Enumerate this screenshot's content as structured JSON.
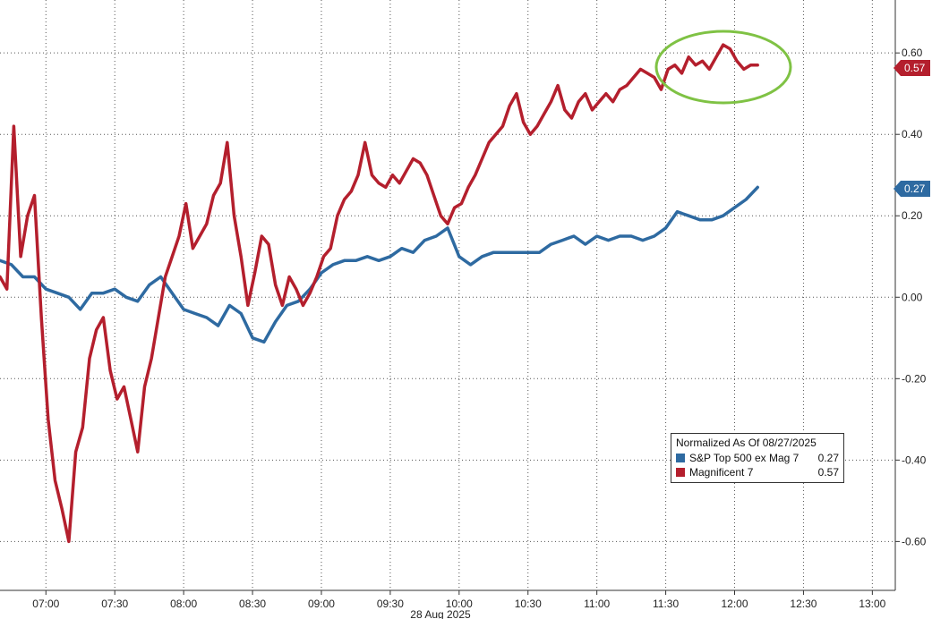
{
  "chart_data": {
    "type": "line",
    "xlabel": "28 Aug 2025",
    "x_ticks": [
      "07:00",
      "07:30",
      "08:00",
      "08:30",
      "09:00",
      "09:30",
      "10:00",
      "10:30",
      "11:00",
      "11:30",
      "12:00",
      "12:30",
      "13:00"
    ],
    "x_range": [
      "06:40",
      "13:10"
    ],
    "y_ticks": [
      "0.60",
      "0.40",
      "0.20",
      "0.00",
      "-0.20",
      "-0.40",
      "-0.60"
    ],
    "ylim": [
      -0.72,
      0.73
    ],
    "grid": true,
    "legend_position": "bottom-right",
    "legend_title": "Normalized As Of 08/27/2025",
    "series": [
      {
        "name": "S&P Top 500 ex Mag 7",
        "color": "#2e6aa1",
        "last_value": "0.27",
        "x": [
          "06:40",
          "06:45",
          "06:50",
          "06:55",
          "07:00",
          "07:05",
          "07:10",
          "07:15",
          "07:20",
          "07:25",
          "07:30",
          "07:35",
          "07:40",
          "07:45",
          "07:50",
          "07:55",
          "08:00",
          "08:05",
          "08:10",
          "08:15",
          "08:20",
          "08:25",
          "08:30",
          "08:35",
          "08:40",
          "08:45",
          "08:50",
          "08:55",
          "09:00",
          "09:05",
          "09:10",
          "09:15",
          "09:20",
          "09:25",
          "09:30",
          "09:35",
          "09:40",
          "09:45",
          "09:50",
          "09:55",
          "10:00",
          "10:05",
          "10:10",
          "10:15",
          "10:20",
          "10:25",
          "10:30",
          "10:35",
          "10:40",
          "10:45",
          "10:50",
          "10:55",
          "11:00",
          "11:05",
          "11:10",
          "11:15",
          "11:20",
          "11:25",
          "11:30",
          "11:35",
          "11:40",
          "11:45",
          "11:50",
          "11:55",
          "12:00",
          "12:05",
          "12:10"
        ],
        "values": [
          0.09,
          0.08,
          0.05,
          0.05,
          0.02,
          0.01,
          0.0,
          -0.03,
          0.01,
          0.01,
          0.02,
          0.0,
          -0.01,
          0.03,
          0.05,
          0.01,
          -0.03,
          -0.04,
          -0.05,
          -0.07,
          -0.02,
          -0.04,
          -0.1,
          -0.11,
          -0.06,
          -0.02,
          -0.01,
          0.02,
          0.06,
          0.08,
          0.09,
          0.09,
          0.1,
          0.09,
          0.1,
          0.12,
          0.11,
          0.14,
          0.15,
          0.17,
          0.1,
          0.08,
          0.1,
          0.11,
          0.11,
          0.11,
          0.11,
          0.11,
          0.13,
          0.14,
          0.15,
          0.13,
          0.15,
          0.14,
          0.15,
          0.15,
          0.14,
          0.15,
          0.17,
          0.21,
          0.2,
          0.19,
          0.19,
          0.2,
          0.22,
          0.24,
          0.27
        ]
      },
      {
        "name": "Magnificent 7",
        "color": "#b41f2d",
        "last_value": "0.57",
        "x": [
          "06:40",
          "06:43",
          "06:46",
          "06:49",
          "06:52",
          "06:55",
          "06:58",
          "07:01",
          "07:04",
          "07:07",
          "07:10",
          "07:13",
          "07:16",
          "07:19",
          "07:22",
          "07:25",
          "07:28",
          "07:31",
          "07:34",
          "07:37",
          "07:40",
          "07:43",
          "07:46",
          "07:49",
          "07:52",
          "07:55",
          "07:58",
          "08:01",
          "08:04",
          "08:07",
          "08:10",
          "08:13",
          "08:16",
          "08:19",
          "08:22",
          "08:25",
          "08:28",
          "08:31",
          "08:34",
          "08:37",
          "08:40",
          "08:43",
          "08:46",
          "08:49",
          "08:52",
          "08:55",
          "08:58",
          "09:01",
          "09:04",
          "09:07",
          "09:10",
          "09:13",
          "09:16",
          "09:19",
          "09:22",
          "09:25",
          "09:28",
          "09:31",
          "09:34",
          "09:37",
          "09:40",
          "09:43",
          "09:46",
          "09:49",
          "09:52",
          "09:55",
          "09:58",
          "10:01",
          "10:04",
          "10:07",
          "10:10",
          "10:13",
          "10:16",
          "10:19",
          "10:22",
          "10:25",
          "10:28",
          "10:31",
          "10:34",
          "10:37",
          "10:40",
          "10:43",
          "10:46",
          "10:49",
          "10:52",
          "10:55",
          "10:58",
          "11:01",
          "11:04",
          "11:07",
          "11:10",
          "11:13",
          "11:16",
          "11:19",
          "11:22",
          "11:25",
          "11:28",
          "11:31",
          "11:34",
          "11:37",
          "11:40",
          "11:43",
          "11:46",
          "11:49",
          "11:52",
          "11:55",
          "11:58",
          "12:01",
          "12:04",
          "12:07",
          "12:10"
        ],
        "values": [
          0.05,
          0.02,
          0.42,
          0.1,
          0.2,
          0.25,
          -0.05,
          -0.3,
          -0.45,
          -0.52,
          -0.6,
          -0.38,
          -0.32,
          -0.15,
          -0.08,
          -0.05,
          -0.18,
          -0.25,
          -0.22,
          -0.3,
          -0.38,
          -0.22,
          -0.15,
          -0.05,
          0.05,
          0.1,
          0.15,
          0.23,
          0.12,
          0.15,
          0.18,
          0.25,
          0.28,
          0.38,
          0.2,
          0.1,
          -0.02,
          0.06,
          0.15,
          0.13,
          0.03,
          -0.02,
          0.05,
          0.02,
          -0.02,
          0.01,
          0.05,
          0.1,
          0.12,
          0.2,
          0.24,
          0.26,
          0.3,
          0.38,
          0.3,
          0.28,
          0.27,
          0.3,
          0.28,
          0.31,
          0.34,
          0.33,
          0.3,
          0.25,
          0.2,
          0.18,
          0.22,
          0.23,
          0.27,
          0.3,
          0.34,
          0.38,
          0.4,
          0.42,
          0.47,
          0.5,
          0.43,
          0.4,
          0.42,
          0.45,
          0.48,
          0.52,
          0.46,
          0.44,
          0.48,
          0.5,
          0.46,
          0.48,
          0.5,
          0.48,
          0.51,
          0.52,
          0.54,
          0.56,
          0.55,
          0.54,
          0.51,
          0.56,
          0.57,
          0.55,
          0.59,
          0.57,
          0.58,
          0.56,
          0.59,
          0.62,
          0.61,
          0.58,
          0.56,
          0.57,
          0.57
        ]
      }
    ]
  }
}
